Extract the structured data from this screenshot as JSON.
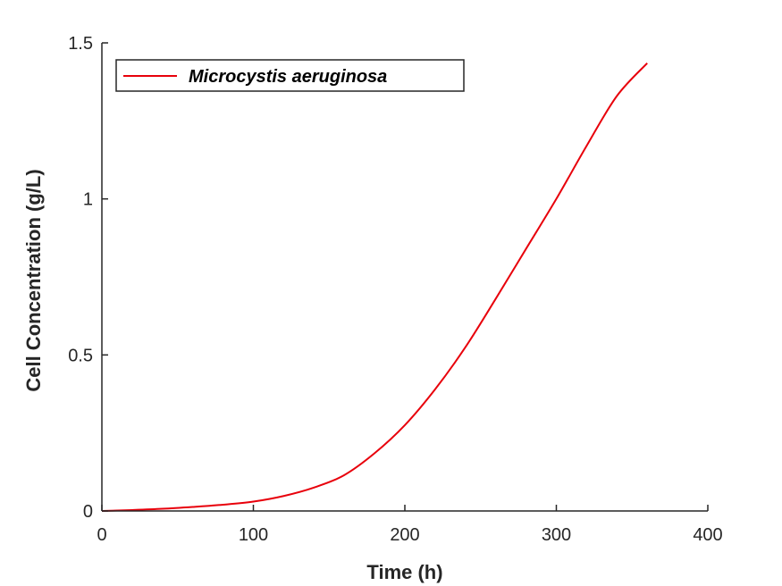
{
  "chart_data": {
    "type": "line",
    "title": "",
    "xlabel": "Time (h)",
    "ylabel": "Cell Concentration (g/L)",
    "xlim": [
      0,
      400
    ],
    "ylim": [
      0,
      1.5
    ],
    "x_ticks": [
      0,
      100,
      200,
      300,
      400
    ],
    "y_ticks": [
      0,
      0.5,
      1,
      1.5
    ],
    "x_tick_labels": [
      "0",
      "100",
      "200",
      "300",
      "400"
    ],
    "y_tick_labels": [
      "0",
      "0.5",
      "1",
      "1.5"
    ],
    "grid": false,
    "legend_position": "top-left",
    "series": [
      {
        "name": "Microcystis aeruginosa",
        "color": "#e8000b",
        "x": [
          0,
          20,
          40,
          60,
          80,
          100,
          120,
          140,
          160,
          180,
          200,
          220,
          240,
          260,
          280,
          300,
          320,
          340,
          360
        ],
        "y": [
          0.0,
          0.003,
          0.007,
          0.013,
          0.02,
          0.03,
          0.048,
          0.075,
          0.115,
          0.185,
          0.275,
          0.39,
          0.525,
          0.68,
          0.84,
          1.0,
          1.17,
          1.33,
          1.435
        ]
      }
    ]
  }
}
